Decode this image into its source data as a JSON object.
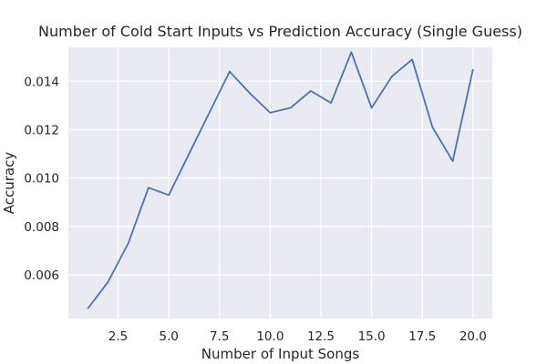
{
  "chart_data": {
    "type": "line",
    "title": "Number of Cold Start Inputs vs Prediction Accuracy (Single Guess)",
    "xlabel": "Number of Input Songs",
    "ylabel": "Accuracy",
    "xlim": [
      0.05,
      20.95
    ],
    "ylim": [
      0.0042,
      0.0154
    ],
    "xticks": [
      2.5,
      5.0,
      7.5,
      10.0,
      12.5,
      15.0,
      17.5,
      20.0
    ],
    "xtick_labels": [
      "2.5",
      "5.0",
      "7.5",
      "10.0",
      "12.5",
      "15.0",
      "17.5",
      "20.0"
    ],
    "yticks": [
      0.006,
      0.008,
      0.01,
      0.012,
      0.014
    ],
    "ytick_labels": [
      "0.006",
      "0.008",
      "0.010",
      "0.012",
      "0.014"
    ],
    "grid": true,
    "colors": {
      "background": "#eaeaf2",
      "grid": "#ffffff",
      "line": "#4c72b0"
    },
    "series": [
      {
        "x": [
          1,
          2,
          3,
          4,
          5,
          6,
          7,
          8,
          9,
          10,
          11,
          12,
          13,
          14,
          15,
          16,
          17,
          18,
          19,
          20
        ],
        "values": [
          0.0046,
          0.0057,
          0.0073,
          0.0096,
          0.0093,
          0.011,
          0.0127,
          0.0144,
          0.0135,
          0.0127,
          0.0129,
          0.0136,
          0.0131,
          0.0152,
          0.0129,
          0.0142,
          0.0149,
          0.0121,
          0.0107,
          0.0145
        ]
      }
    ]
  }
}
